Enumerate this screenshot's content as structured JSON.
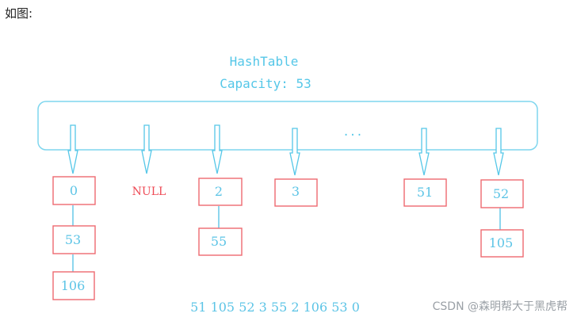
{
  "caption": "如图:",
  "diagram": {
    "title": "HashTable",
    "capacity": "Capacity: 53",
    "ellipsis": "...",
    "null_label": "NULL",
    "buckets": {
      "b0": "0",
      "b0_1": "53",
      "b0_2": "106",
      "b2": "2",
      "b2_1": "55",
      "b3": "3",
      "b51": "51",
      "b52": "52",
      "b52_1": "105"
    },
    "traversal_order": "51 105 52 3 55 2 106 53 0"
  },
  "watermark": "CSDN @森明帮大于黑虎帮",
  "colors": {
    "accent": "#55c7e8",
    "box_border": "#ee6a70",
    "null": "#ee4a55"
  }
}
